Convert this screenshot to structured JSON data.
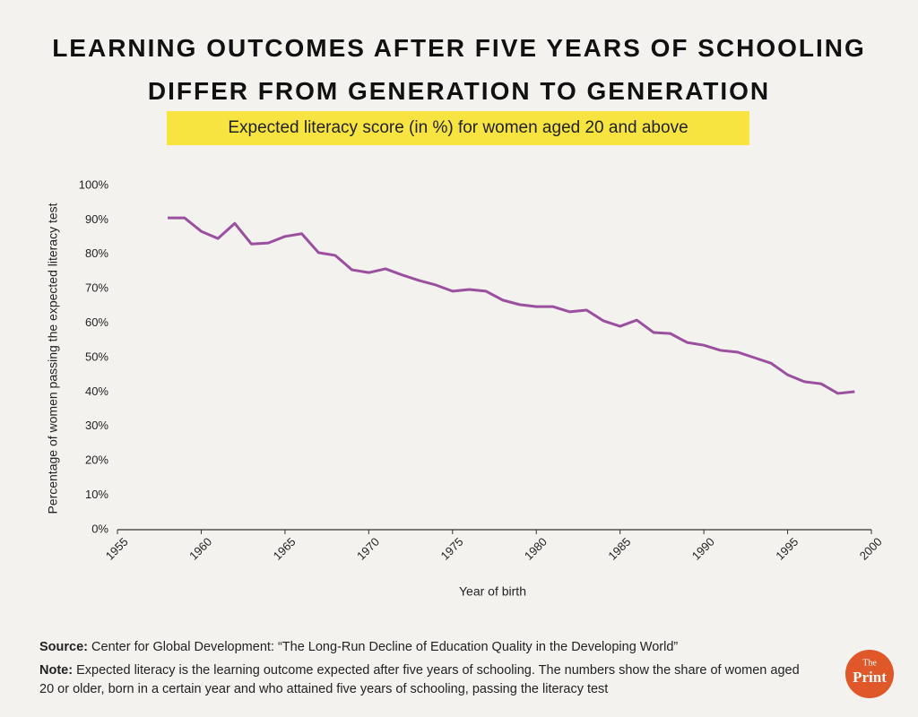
{
  "chart_data": {
    "type": "line",
    "title": "LEARNING OUTCOMES AFTER FIVE YEARS OF SCHOOLING DIFFER FROM GENERATION TO GENERATION",
    "subtitle": "Expected literacy score (in %) for women aged 20 and above",
    "y_label": "Percentage of women passing the expected literacy test",
    "x_label": "Year of birth",
    "x": [
      1958,
      1959,
      1960,
      1961,
      1962,
      1963,
      1964,
      1965,
      1966,
      1967,
      1968,
      1969,
      1970,
      1971,
      1972,
      1973,
      1974,
      1975,
      1976,
      1977,
      1978,
      1979,
      1980,
      1981,
      1982,
      1983,
      1984,
      1985,
      1986,
      1987,
      1988,
      1989,
      1990,
      1991,
      1992,
      1993,
      1994,
      1995,
      1996,
      1997,
      1998,
      1999
    ],
    "series": [
      {
        "name": "Expected literacy",
        "color": "#9b4f9f",
        "values": [
          90.6,
          90.6,
          86.7,
          84.6,
          89,
          83,
          83.3,
          85.2,
          86,
          80.5,
          79.7,
          75.5,
          74.7,
          75.8,
          74,
          72.4,
          71.1,
          69.3,
          69.8,
          69.3,
          66.7,
          65.4,
          64.8,
          64.8,
          63.3,
          63.8,
          60.7,
          59.1,
          60.9,
          57.3,
          57,
          54.4,
          53.6,
          52.1,
          51.6,
          50,
          48.4,
          45,
          43,
          42.4,
          39.6,
          40.1
        ]
      }
    ],
    "xlim": [
      1955,
      2000
    ],
    "xticks": [
      1955,
      1960,
      1965,
      1970,
      1975,
      1980,
      1985,
      1990,
      1995,
      2000
    ],
    "ylim": [
      0,
      100
    ],
    "yticks": [
      {
        "value": 0,
        "label": "0%"
      },
      {
        "value": 10,
        "label": "10%"
      },
      {
        "value": 20,
        "label": "20%"
      },
      {
        "value": 30,
        "label": "30%"
      },
      {
        "value": 40,
        "label": "40%"
      },
      {
        "value": 50,
        "label": "50%"
      },
      {
        "value": 60,
        "label": "60%"
      },
      {
        "value": 70,
        "label": "70%"
      },
      {
        "value": 80,
        "label": "80%"
      },
      {
        "value": 90,
        "label": "90%"
      },
      {
        "value": 100,
        "label": "100%"
      }
    ],
    "grid": false,
    "source_label": "Source:",
    "source": "Center for Global Development: “The Long-Run Decline of Education Quality in the Developing World”",
    "note_label": "Note:",
    "note": "Expected literacy is the learning outcome expected after five years of schooling. The numbers show the share of women aged 20 or older, born in a certain year and who attained five years of schooling, passing the literacy test",
    "logo_top": "The",
    "logo_main": "Print"
  }
}
